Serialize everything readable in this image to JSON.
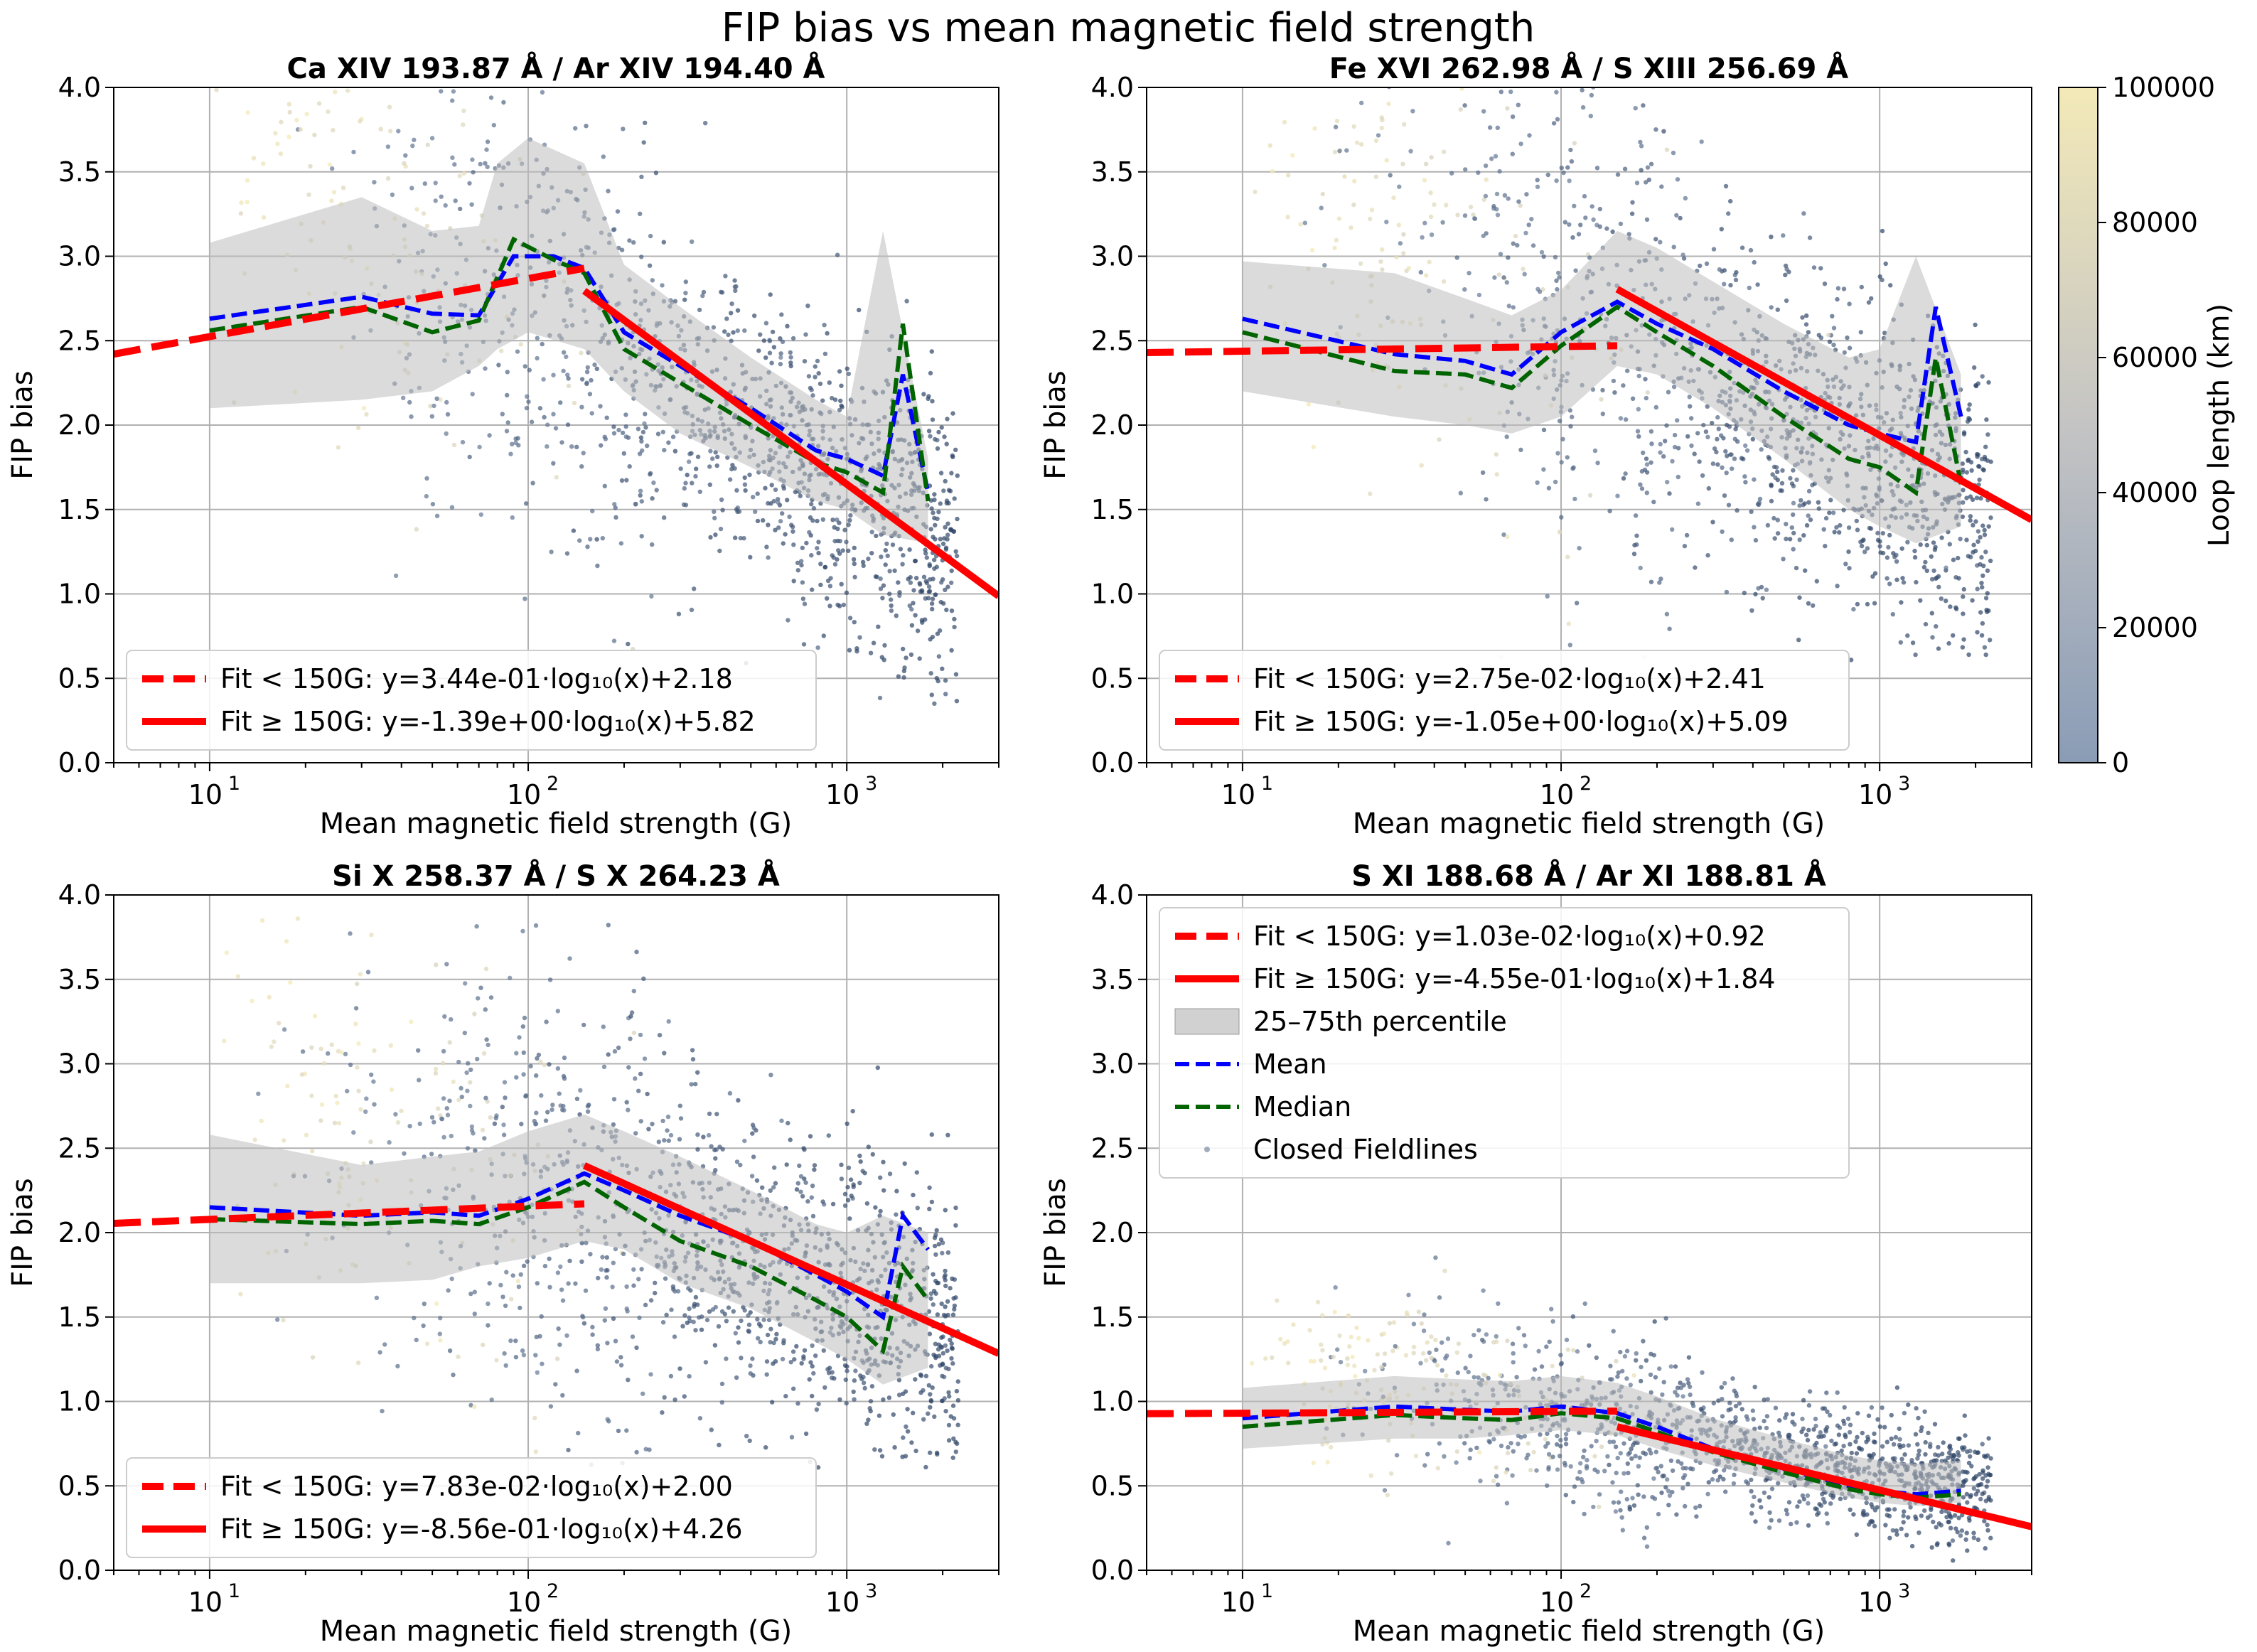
{
  "figure": {
    "title": "FIP bias vs mean magnetic field strength"
  },
  "colors": {
    "fit_line": "#ff0000",
    "mean_line": "#0000ff",
    "median_line": "#006400",
    "percentile_band": "#bdbdbd",
    "grid": "#b0b0b0",
    "colormap_low": "#8a9cb6",
    "colormap_mid": "#c4c4c4",
    "colormap_high": "#f3e9b8",
    "point_dark": "#2e4466"
  },
  "colorbar": {
    "label": "Loop length (km)",
    "min": 0,
    "max": 100000,
    "ticks": [
      "0",
      "20000",
      "40000",
      "60000",
      "80000",
      "100000"
    ],
    "tick_values": [
      0,
      20000,
      40000,
      60000,
      80000,
      100000
    ]
  },
  "chart_data": [
    {
      "type": "scatter",
      "title": "Ca XIV 193.87 Å / Ar XIV 194.40 Å",
      "xlabel": "Mean magnetic field strength (G)",
      "ylabel": "FIP bias",
      "xscale": "log",
      "xlim": [
        5,
        3000
      ],
      "ylim": [
        0,
        4.0
      ],
      "x_ticks": [
        "10",
        "10",
        "10"
      ],
      "x_tick_exps": [
        "1",
        "2",
        "3"
      ],
      "x_tick_values": [
        10,
        100,
        1000
      ],
      "y_ticks": [
        "0.0",
        "0.5",
        "1.0",
        "1.5",
        "2.0",
        "2.5",
        "3.0",
        "3.5",
        "4.0"
      ],
      "y_tick_values": [
        0,
        0.5,
        1.0,
        1.5,
        2.0,
        2.5,
        3.0,
        3.5,
        4.0
      ],
      "grid": true,
      "legend_position": "lower-left",
      "legend": [
        "Fit < 150G: y=3.44e-01·log₁₀(x)+2.18",
        "Fit ≥ 150G: y=-1.39e+00·log₁₀(x)+5.82"
      ],
      "fit_low": {
        "slope": 0.344,
        "intercept": 2.18,
        "x_range": [
          5,
          150
        ]
      },
      "fit_high": {
        "slope": -1.39,
        "intercept": 5.82,
        "x_range": [
          150,
          3000
        ]
      },
      "mean": {
        "x": [
          10,
          30,
          50,
          70,
          90,
          120,
          150,
          200,
          300,
          500,
          800,
          1000,
          1300,
          1500,
          1800
        ],
        "y": [
          2.63,
          2.76,
          2.66,
          2.65,
          3.0,
          3.0,
          2.93,
          2.55,
          2.35,
          2.1,
          1.85,
          1.8,
          1.7,
          2.3,
          1.6
        ]
      },
      "median": {
        "x": [
          10,
          30,
          50,
          70,
          90,
          120,
          150,
          200,
          300,
          500,
          800,
          1000,
          1300,
          1500,
          1800
        ],
        "y": [
          2.56,
          2.7,
          2.55,
          2.62,
          3.1,
          2.98,
          2.9,
          2.45,
          2.25,
          2.0,
          1.78,
          1.72,
          1.6,
          2.6,
          1.55
        ]
      },
      "percentile_band": {
        "x": [
          10,
          30,
          50,
          70,
          80,
          100,
          150,
          200,
          300,
          500,
          800,
          1000,
          1300,
          1800
        ],
        "lower": [
          2.1,
          2.15,
          2.2,
          2.35,
          2.45,
          2.55,
          2.45,
          2.2,
          1.95,
          1.75,
          1.55,
          1.5,
          1.35,
          1.3
        ],
        "upper": [
          3.08,
          3.35,
          3.15,
          3.18,
          3.55,
          3.7,
          3.55,
          2.95,
          2.7,
          2.4,
          2.15,
          2.05,
          3.15,
          1.8
        ]
      },
      "scatter": {
        "x_center": 300,
        "y_center": 2.2,
        "y_spread": 0.55,
        "slope": -1.1,
        "y_floor": 0.3,
        "y_ceil": 4.1
      }
    },
    {
      "type": "scatter",
      "title": "Fe XVI 262.98 Å / S XIII 256.69 Å",
      "xlabel": "Mean magnetic field strength (G)",
      "ylabel": "FIP bias",
      "xscale": "log",
      "xlim": [
        5,
        3000
      ],
      "ylim": [
        0,
        4.0
      ],
      "x_ticks": [
        "10",
        "10",
        "10"
      ],
      "x_tick_exps": [
        "1",
        "2",
        "3"
      ],
      "x_tick_values": [
        10,
        100,
        1000
      ],
      "y_ticks": [
        "0.0",
        "0.5",
        "1.0",
        "1.5",
        "2.0",
        "2.5",
        "3.0",
        "3.5",
        "4.0"
      ],
      "y_tick_values": [
        0,
        0.5,
        1.0,
        1.5,
        2.0,
        2.5,
        3.0,
        3.5,
        4.0
      ],
      "grid": true,
      "legend_position": "lower-left",
      "legend": [
        "Fit < 150G: y=2.75e-02·log₁₀(x)+2.41",
        "Fit ≥ 150G: y=-1.05e+00·log₁₀(x)+5.09"
      ],
      "fit_low": {
        "slope": 0.0275,
        "intercept": 2.41,
        "x_range": [
          5,
          150
        ]
      },
      "fit_high": {
        "slope": -1.05,
        "intercept": 5.09,
        "x_range": [
          150,
          3000
        ]
      },
      "mean": {
        "x": [
          10,
          30,
          50,
          70,
          100,
          150,
          200,
          300,
          500,
          800,
          1000,
          1300,
          1500,
          1800
        ],
        "y": [
          2.63,
          2.42,
          2.38,
          2.3,
          2.55,
          2.73,
          2.6,
          2.45,
          2.2,
          2.0,
          1.95,
          1.9,
          2.7,
          2.05
        ]
      },
      "median": {
        "x": [
          10,
          30,
          50,
          70,
          100,
          150,
          200,
          300,
          500,
          800,
          1000,
          1300,
          1500,
          1800
        ],
        "y": [
          2.55,
          2.32,
          2.3,
          2.22,
          2.47,
          2.7,
          2.55,
          2.35,
          2.05,
          1.8,
          1.75,
          1.6,
          2.4,
          1.65
        ]
      },
      "percentile_band": {
        "x": [
          10,
          30,
          50,
          70,
          100,
          150,
          200,
          300,
          500,
          800,
          1000,
          1300,
          1800
        ],
        "lower": [
          2.2,
          2.05,
          2.0,
          1.95,
          2.05,
          2.35,
          2.3,
          2.1,
          1.8,
          1.5,
          1.4,
          1.3,
          1.4
        ],
        "upper": [
          2.97,
          2.9,
          2.75,
          2.65,
          2.8,
          3.15,
          3.05,
          2.85,
          2.6,
          2.4,
          2.45,
          3.0,
          2.3
        ]
      },
      "scatter": {
        "x_center": 300,
        "y_center": 2.25,
        "y_spread": 0.6,
        "slope": -0.9,
        "y_floor": 0.6,
        "y_ceil": 4.1
      }
    },
    {
      "type": "scatter",
      "title": "Si X 258.37 Å / S X 264.23 Å",
      "xlabel": "Mean magnetic field strength (G)",
      "ylabel": "FIP bias",
      "xscale": "log",
      "xlim": [
        5,
        3000
      ],
      "ylim": [
        0,
        4.0
      ],
      "x_ticks": [
        "10",
        "10",
        "10"
      ],
      "x_tick_exps": [
        "1",
        "2",
        "3"
      ],
      "x_tick_values": [
        10,
        100,
        1000
      ],
      "y_ticks": [
        "0.0",
        "0.5",
        "1.0",
        "1.5",
        "2.0",
        "2.5",
        "3.0",
        "3.5",
        "4.0"
      ],
      "y_tick_values": [
        0,
        0.5,
        1.0,
        1.5,
        2.0,
        2.5,
        3.0,
        3.5,
        4.0
      ],
      "grid": true,
      "legend_position": "lower-left",
      "legend": [
        "Fit < 150G: y=7.83e-02·log₁₀(x)+2.00",
        "Fit ≥ 150G: y=-8.56e-01·log₁₀(x)+4.26"
      ],
      "fit_low": {
        "slope": 0.0783,
        "intercept": 2.0,
        "x_range": [
          5,
          150
        ]
      },
      "fit_high": {
        "slope": -0.856,
        "intercept": 4.26,
        "x_range": [
          150,
          3000
        ]
      },
      "mean": {
        "x": [
          10,
          30,
          50,
          70,
          100,
          150,
          200,
          300,
          500,
          800,
          1000,
          1300,
          1500,
          1800
        ],
        "y": [
          2.15,
          2.1,
          2.12,
          2.1,
          2.2,
          2.35,
          2.25,
          2.1,
          1.95,
          1.75,
          1.65,
          1.5,
          2.1,
          1.9
        ]
      },
      "median": {
        "x": [
          10,
          30,
          50,
          70,
          100,
          150,
          200,
          300,
          500,
          800,
          1000,
          1300,
          1500,
          1800
        ],
        "y": [
          2.08,
          2.05,
          2.07,
          2.05,
          2.15,
          2.3,
          2.15,
          1.95,
          1.8,
          1.6,
          1.5,
          1.3,
          1.8,
          1.6
        ]
      },
      "percentile_band": {
        "x": [
          10,
          30,
          50,
          70,
          100,
          150,
          200,
          300,
          500,
          800,
          1000,
          1300,
          1800
        ],
        "lower": [
          1.7,
          1.7,
          1.72,
          1.8,
          1.85,
          1.95,
          1.9,
          1.7,
          1.55,
          1.35,
          1.25,
          1.1,
          1.2
        ],
        "upper": [
          2.58,
          2.4,
          2.45,
          2.48,
          2.6,
          2.7,
          2.6,
          2.45,
          2.25,
          2.05,
          2.0,
          2.1,
          2.0
        ]
      },
      "scatter": {
        "x_center": 300,
        "y_center": 1.95,
        "y_spread": 0.55,
        "slope": -0.6,
        "y_floor": 0.6,
        "y_ceil": 4.1
      }
    },
    {
      "type": "scatter",
      "title": "S XI 188.68 Å / Ar XI 188.81 Å",
      "xlabel": "Mean magnetic field strength (G)",
      "ylabel": "FIP bias",
      "xscale": "log",
      "xlim": [
        5,
        3000
      ],
      "ylim": [
        0,
        4.0
      ],
      "x_ticks": [
        "10",
        "10",
        "10"
      ],
      "x_tick_exps": [
        "1",
        "2",
        "3"
      ],
      "x_tick_values": [
        10,
        100,
        1000
      ],
      "y_ticks": [
        "0.0",
        "0.5",
        "1.0",
        "1.5",
        "2.0",
        "2.5",
        "3.0",
        "3.5",
        "4.0"
      ],
      "y_tick_values": [
        0,
        0.5,
        1.0,
        1.5,
        2.0,
        2.5,
        3.0,
        3.5,
        4.0
      ],
      "grid": true,
      "legend_position": "upper-left",
      "legend": [
        "Fit < 150G: y=1.03e-02·log₁₀(x)+0.92",
        "Fit ≥ 150G: y=-4.55e-01·log₁₀(x)+1.84",
        "25–75th percentile",
        "Mean",
        "Median",
        "Closed Fieldlines"
      ],
      "fit_low": {
        "slope": 0.0103,
        "intercept": 0.92,
        "x_range": [
          5,
          150
        ]
      },
      "fit_high": {
        "slope": -0.455,
        "intercept": 1.84,
        "x_range": [
          150,
          3000
        ]
      },
      "mean": {
        "x": [
          10,
          30,
          50,
          70,
          100,
          150,
          200,
          300,
          500,
          800,
          1000,
          1300,
          1800
        ],
        "y": [
          0.9,
          0.97,
          0.95,
          0.94,
          0.97,
          0.93,
          0.85,
          0.72,
          0.6,
          0.5,
          0.47,
          0.45,
          0.47
        ]
      },
      "median": {
        "x": [
          10,
          30,
          50,
          70,
          100,
          150,
          200,
          300,
          500,
          800,
          1000,
          1300,
          1800
        ],
        "y": [
          0.85,
          0.92,
          0.9,
          0.89,
          0.93,
          0.9,
          0.82,
          0.7,
          0.58,
          0.48,
          0.45,
          0.43,
          0.45
        ]
      },
      "percentile_band": {
        "x": [
          10,
          30,
          50,
          70,
          100,
          150,
          200,
          300,
          500,
          800,
          1000,
          1300,
          1800
        ],
        "lower": [
          0.72,
          0.78,
          0.78,
          0.8,
          0.83,
          0.8,
          0.72,
          0.62,
          0.52,
          0.43,
          0.4,
          0.38,
          0.4
        ]
      },
      "scatter": {
        "x_center": 300,
        "y_center": 0.75,
        "y_spread": 0.22,
        "slope": -0.35,
        "y_floor": 0.05,
        "y_ceil": 2.2
      }
    }
  ]
}
